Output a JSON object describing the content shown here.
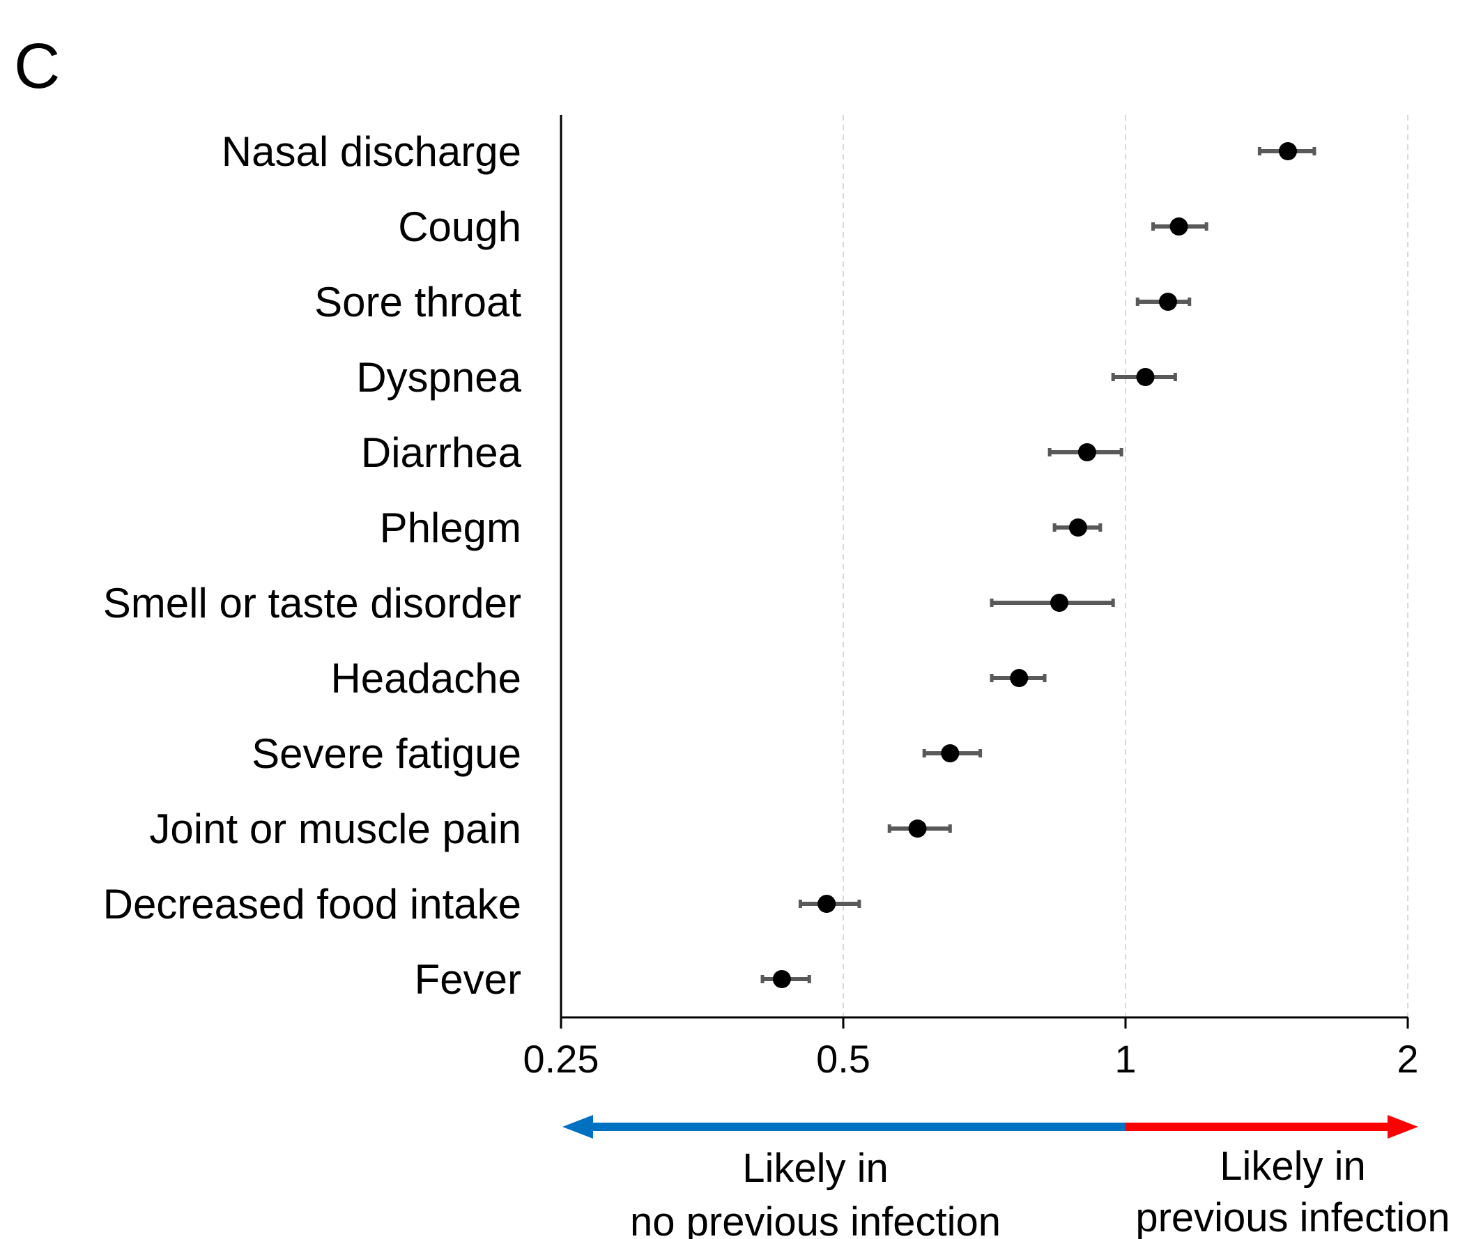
{
  "panel_label": "C",
  "chart_data": {
    "type": "forest",
    "x_scale": "log2",
    "xlim": [
      0.25,
      2
    ],
    "xticks": [
      "0.25",
      "0.5",
      "1",
      "2"
    ],
    "reference_line": 1,
    "grid": "dashed vertical at ticks",
    "categories": [
      "Nasal discharge",
      "Cough",
      "Sore throat",
      "Dyspnea",
      "Diarrhea",
      "Phlegm",
      "Smell or taste disorder",
      "Headache",
      "Severe fatigue",
      "Joint or muscle pain",
      "Decreased food intake",
      "Fever"
    ],
    "estimates": [
      1.49,
      1.14,
      1.11,
      1.05,
      0.91,
      0.89,
      0.85,
      0.77,
      0.65,
      0.6,
      0.48,
      0.43
    ],
    "ci_lower": [
      1.39,
      1.07,
      1.03,
      0.97,
      0.83,
      0.84,
      0.72,
      0.72,
      0.61,
      0.56,
      0.45,
      0.41
    ],
    "ci_upper": [
      1.59,
      1.22,
      1.17,
      1.13,
      0.99,
      0.94,
      0.97,
      0.82,
      0.7,
      0.65,
      0.52,
      0.46
    ],
    "direction_arrow": {
      "left_label": [
        "Likely in",
        "no previous infection"
      ],
      "right_label": [
        "Likely in",
        "previous infection"
      ],
      "left_color": "#0070c0",
      "right_color": "#ff0000"
    },
    "point_color": "#000000",
    "ci_color": "#595959"
  }
}
